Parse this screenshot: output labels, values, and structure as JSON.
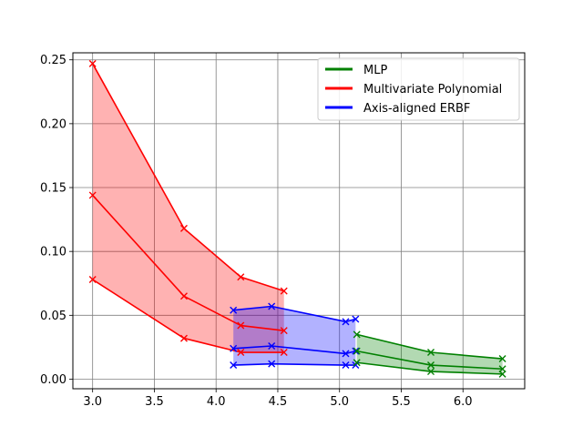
{
  "chart_data": {
    "type": "line",
    "title": "",
    "xlabel": "",
    "ylabel": "",
    "xlim": [
      2.84,
      6.5
    ],
    "ylim": [
      -0.0075,
      0.2555
    ],
    "x_ticks": [
      "3.0",
      "3.5",
      "4.0",
      "4.5",
      "5.0",
      "5.5",
      "6.0"
    ],
    "y_ticks": [
      "0.00",
      "0.05",
      "0.10",
      "0.15",
      "0.20",
      "0.25"
    ],
    "grid": true,
    "legend_position": "top-right",
    "series": [
      {
        "name": "MLP",
        "color": "#008000",
        "fill_color": "#008000",
        "x": [
          5.14,
          5.74,
          6.32
        ],
        "median": [
          0.022,
          0.011,
          0.008
        ],
        "lower": [
          0.013,
          0.006,
          0.004
        ],
        "upper": [
          0.035,
          0.021,
          0.016
        ]
      },
      {
        "name": "Multivariate Polynomial",
        "color": "#ff0000",
        "fill_color": "#ff0000",
        "x": [
          3.0,
          3.74,
          4.2,
          4.55
        ],
        "median": [
          0.144,
          0.065,
          0.042,
          0.038
        ],
        "lower": [
          0.078,
          0.032,
          0.021,
          0.021
        ],
        "upper": [
          0.247,
          0.118,
          0.08,
          0.069
        ]
      },
      {
        "name": "Axis-aligned ERBF",
        "color": "#0000ff",
        "fill_color": "#0000ff",
        "x": [
          4.14,
          4.45,
          5.05,
          5.13
        ],
        "median": [
          0.024,
          0.026,
          0.02,
          0.022
        ],
        "lower": [
          0.011,
          0.012,
          0.011,
          0.011
        ],
        "upper": [
          0.054,
          0.057,
          0.045,
          0.047
        ]
      }
    ]
  }
}
